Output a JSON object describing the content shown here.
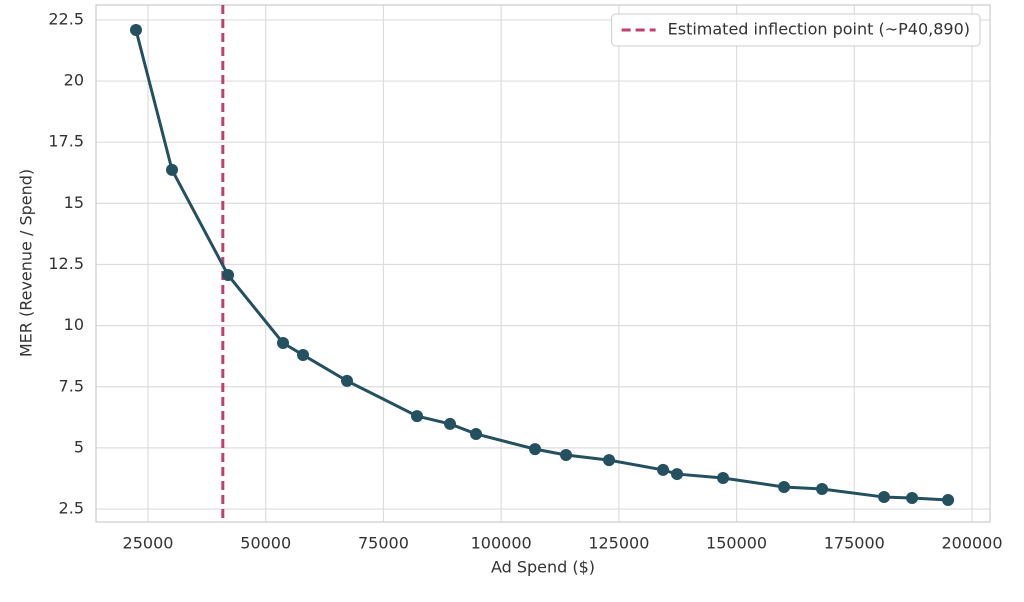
{
  "chart_data": {
    "type": "line",
    "x_label": "Ad Spend ($)",
    "y_label": "MER (Revenue / Spend)",
    "x": [
      22451,
      30098,
      41992,
      53674,
      57922,
      67267,
      82135,
      89145,
      94667,
      107198,
      113782,
      122916,
      134385,
      137358,
      147129,
      160085,
      168156,
      181325,
      187272,
      194919
    ],
    "series": [
      {
        "color": "#24505f",
        "values": [
          22.09,
          16.37,
          12.07,
          9.29,
          8.8,
          7.74,
          6.3,
          5.98,
          5.57,
          4.95,
          4.71,
          4.5,
          4.1,
          3.93,
          3.77,
          3.4,
          3.32,
          2.99,
          2.95,
          2.87
        ]
      }
    ],
    "vline": {
      "x": 40890,
      "name": "Estimated inflection point (~P40,890)",
      "color": "#c0406a"
    },
    "xlim": [
      13955,
      203823
    ],
    "ylim": [
      1.97,
      23.11
    ],
    "xticks": [
      25000,
      50000,
      75000,
      100000,
      125000,
      150000,
      175000,
      200000
    ],
    "yticks": [
      2.5,
      5.0,
      7.5,
      10.0,
      12.5,
      15.0,
      17.5,
      20.0,
      22.5
    ],
    "grid": true,
    "legend": "upper right"
  }
}
